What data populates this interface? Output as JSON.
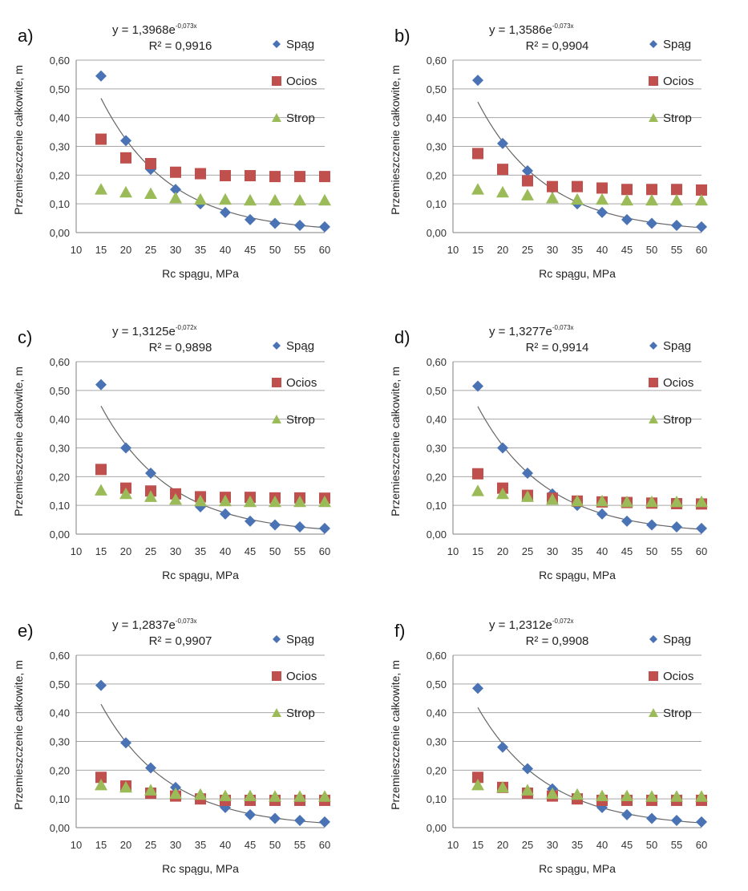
{
  "chart_data": [
    {
      "type": "scatter",
      "panel_label": "a)",
      "equation_base": "y = 1,3968e",
      "equation_exp": "-0,073x",
      "r2": "R² = 0,9916",
      "xlabel": "Rc spągu,  MPa",
      "ylabel": "Przemieszczenie całkowite,  m",
      "xlim": [
        10,
        60
      ],
      "ylim": [
        0,
        0.6
      ],
      "x_ticks": [
        "10",
        "15",
        "20",
        "25",
        "30",
        "35",
        "40",
        "45",
        "50",
        "55",
        "60"
      ],
      "y_ticks": [
        "0,00",
        "0,10",
        "0,20",
        "0,30",
        "0,40",
        "0,50",
        "0,60"
      ],
      "grid": "horizontal",
      "legend_position": "right",
      "trendline": {
        "a": 1.3968,
        "b": -0.073,
        "x_range": [
          15,
          60
        ],
        "color": "#666666"
      },
      "x": [
        15,
        20,
        25,
        30,
        35,
        40,
        45,
        50,
        55,
        60
      ],
      "series": [
        {
          "name": "Spąg",
          "marker": "diamond",
          "color": "#4a73b5",
          "values": [
            0.545,
            0.32,
            0.22,
            0.15,
            0.1,
            0.07,
            0.045,
            0.032,
            0.025,
            0.02
          ]
        },
        {
          "name": "Ocios",
          "marker": "square",
          "color": "#c0504d",
          "values": [
            0.325,
            0.26,
            0.24,
            0.21,
            0.205,
            0.198,
            0.198,
            0.195,
            0.195,
            0.195
          ]
        },
        {
          "name": "Strop",
          "marker": "triangle",
          "color": "#9bbb59",
          "values": [
            0.15,
            0.14,
            0.135,
            0.12,
            0.115,
            0.115,
            0.112,
            0.112,
            0.112,
            0.112
          ]
        }
      ]
    },
    {
      "type": "scatter",
      "panel_label": "b)",
      "equation_base": "y = 1,3586e",
      "equation_exp": "-0,073x",
      "r2": "R² = 0,9904",
      "xlabel": "Rc spągu,  MPa",
      "ylabel": "Przemieszczenie całkowite,  m",
      "xlim": [
        10,
        60
      ],
      "ylim": [
        0,
        0.6
      ],
      "x_ticks": [
        "10",
        "15",
        "20",
        "25",
        "30",
        "35",
        "40",
        "45",
        "50",
        "55",
        "60"
      ],
      "y_ticks": [
        "0,00",
        "0,10",
        "0,20",
        "0,30",
        "0,40",
        "0,50",
        "0,60"
      ],
      "grid": "horizontal",
      "legend_position": "right",
      "trendline": {
        "a": 1.3586,
        "b": -0.073,
        "x_range": [
          15,
          60
        ],
        "color": "#666666"
      },
      "x": [
        15,
        20,
        25,
        30,
        35,
        40,
        45,
        50,
        55,
        60
      ],
      "series": [
        {
          "name": "Spąg",
          "marker": "diamond",
          "color": "#4a73b5",
          "values": [
            0.53,
            0.31,
            0.215,
            0.155,
            0.1,
            0.07,
            0.045,
            0.032,
            0.025,
            0.02
          ]
        },
        {
          "name": "Ocios",
          "marker": "square",
          "color": "#c0504d",
          "values": [
            0.275,
            0.22,
            0.18,
            0.16,
            0.16,
            0.155,
            0.15,
            0.15,
            0.15,
            0.148
          ]
        },
        {
          "name": "Strop",
          "marker": "triangle",
          "color": "#9bbb59",
          "values": [
            0.15,
            0.14,
            0.13,
            0.12,
            0.115,
            0.115,
            0.112,
            0.112,
            0.112,
            0.112
          ]
        }
      ]
    },
    {
      "type": "scatter",
      "panel_label": "c)",
      "equation_base": "y = 1,3125e",
      "equation_exp": "-0,072x",
      "r2": "R² = 0,9898",
      "xlabel": "Rc spągu,  MPa",
      "ylabel": "Przemieszczenie całkowite,  m",
      "xlim": [
        10,
        60
      ],
      "ylim": [
        0,
        0.6
      ],
      "x_ticks": [
        "10",
        "15",
        "20",
        "25",
        "30",
        "35",
        "40",
        "45",
        "50",
        "55",
        "60"
      ],
      "y_ticks": [
        "0,00",
        "0,10",
        "0,20",
        "0,30",
        "0,40",
        "0,50",
        "0,60"
      ],
      "grid": "horizontal",
      "legend_position": "right",
      "trendline": {
        "a": 1.3125,
        "b": -0.072,
        "x_range": [
          15,
          60
        ],
        "color": "#666666"
      },
      "x": [
        15,
        20,
        25,
        30,
        35,
        40,
        45,
        50,
        55,
        60
      ],
      "series": [
        {
          "name": "Spąg",
          "marker": "diamond",
          "color": "#4a73b5",
          "values": [
            0.52,
            0.3,
            0.212,
            0.14,
            0.095,
            0.07,
            0.045,
            0.032,
            0.025,
            0.02
          ]
        },
        {
          "name": "Ocios",
          "marker": "square",
          "color": "#c0504d",
          "values": [
            0.225,
            0.16,
            0.15,
            0.14,
            0.13,
            0.128,
            0.128,
            0.126,
            0.126,
            0.125
          ]
        },
        {
          "name": "Strop",
          "marker": "triangle",
          "color": "#9bbb59",
          "values": [
            0.152,
            0.14,
            0.13,
            0.12,
            0.115,
            0.115,
            0.112,
            0.112,
            0.112,
            0.112
          ]
        }
      ]
    },
    {
      "type": "scatter",
      "panel_label": "d)",
      "equation_base": "y = 1,3277e",
      "equation_exp": "-0,073x",
      "r2": "R² = 0,9914",
      "xlabel": "Rc spągu,  MPa",
      "ylabel": "Przemieszczenie całkowite,  m",
      "xlim": [
        10,
        60
      ],
      "ylim": [
        0,
        0.6
      ],
      "x_ticks": [
        "10",
        "15",
        "20",
        "25",
        "30",
        "35",
        "40",
        "45",
        "50",
        "55",
        "60"
      ],
      "y_ticks": [
        "0,00",
        "0,10",
        "0,20",
        "0,30",
        "0,40",
        "0,50",
        "0,60"
      ],
      "grid": "horizontal",
      "legend_position": "right",
      "trendline": {
        "a": 1.3277,
        "b": -0.073,
        "x_range": [
          15,
          60
        ],
        "color": "#666666"
      },
      "x": [
        15,
        20,
        25,
        30,
        35,
        40,
        45,
        50,
        55,
        60
      ],
      "series": [
        {
          "name": "Spąg",
          "marker": "diamond",
          "color": "#4a73b5",
          "values": [
            0.515,
            0.3,
            0.212,
            0.14,
            0.1,
            0.07,
            0.045,
            0.032,
            0.025,
            0.02
          ]
        },
        {
          "name": "Ocios",
          "marker": "square",
          "color": "#c0504d",
          "values": [
            0.21,
            0.16,
            0.135,
            0.125,
            0.115,
            0.112,
            0.11,
            0.108,
            0.106,
            0.105
          ]
        },
        {
          "name": "Strop",
          "marker": "triangle",
          "color": "#9bbb59",
          "values": [
            0.15,
            0.14,
            0.13,
            0.12,
            0.115,
            0.115,
            0.112,
            0.112,
            0.112,
            0.112
          ]
        }
      ]
    },
    {
      "type": "scatter",
      "panel_label": "e)",
      "equation_base": "y = 1,2837e",
      "equation_exp": "-0,073x",
      "r2": "R² = 0,9907",
      "xlabel": "Rc spągu,  MPa",
      "ylabel": "Przemieszczenie całkowite,  m",
      "xlim": [
        10,
        60
      ],
      "ylim": [
        0,
        0.6
      ],
      "x_ticks": [
        "10",
        "15",
        "20",
        "25",
        "30",
        "35",
        "40",
        "45",
        "50",
        "55",
        "60"
      ],
      "y_ticks": [
        "0,00",
        "0,10",
        "0,20",
        "0,30",
        "0,40",
        "0,50",
        "0,60"
      ],
      "grid": "horizontal",
      "legend_position": "right",
      "trendline": {
        "a": 1.2837,
        "b": -0.073,
        "x_range": [
          15,
          60
        ],
        "color": "#666666"
      },
      "x": [
        15,
        20,
        25,
        30,
        35,
        40,
        45,
        50,
        55,
        60
      ],
      "series": [
        {
          "name": "Spąg",
          "marker": "diamond",
          "color": "#4a73b5",
          "values": [
            0.495,
            0.295,
            0.208,
            0.14,
            0.1,
            0.07,
            0.045,
            0.032,
            0.025,
            0.02
          ]
        },
        {
          "name": "Ocios",
          "marker": "square",
          "color": "#c0504d",
          "values": [
            0.175,
            0.145,
            0.12,
            0.11,
            0.1,
            0.095,
            0.095,
            0.095,
            0.095,
            0.095
          ]
        },
        {
          "name": "Strop",
          "marker": "triangle",
          "color": "#9bbb59",
          "values": [
            0.148,
            0.14,
            0.13,
            0.118,
            0.115,
            0.11,
            0.11,
            0.108,
            0.108,
            0.108
          ]
        }
      ]
    },
    {
      "type": "scatter",
      "panel_label": "f)",
      "equation_base": "y = 1,2312e",
      "equation_exp": "-0,072x",
      "r2": "R² = 0,9908",
      "xlabel": "Rc spągu,  MPa",
      "ylabel": "Przemieszczenie całkowite,  m",
      "xlim": [
        10,
        60
      ],
      "ylim": [
        0,
        0.6
      ],
      "x_ticks": [
        "10",
        "15",
        "20",
        "25",
        "30",
        "35",
        "40",
        "45",
        "50",
        "55",
        "60"
      ],
      "y_ticks": [
        "0,00",
        "0,10",
        "0,20",
        "0,30",
        "0,40",
        "0,50",
        "0,60"
      ],
      "grid": "horizontal",
      "legend_position": "right",
      "trendline": {
        "a": 1.2312,
        "b": -0.072,
        "x_range": [
          15,
          60
        ],
        "color": "#666666"
      },
      "x": [
        15,
        20,
        25,
        30,
        35,
        40,
        45,
        50,
        55,
        60
      ],
      "series": [
        {
          "name": "Spąg",
          "marker": "diamond",
          "color": "#4a73b5",
          "values": [
            0.485,
            0.28,
            0.205,
            0.135,
            0.1,
            0.07,
            0.045,
            0.032,
            0.025,
            0.02
          ]
        },
        {
          "name": "Ocios",
          "marker": "square",
          "color": "#c0504d",
          "values": [
            0.175,
            0.14,
            0.12,
            0.11,
            0.1,
            0.095,
            0.095,
            0.095,
            0.095,
            0.095
          ]
        },
        {
          "name": "Strop",
          "marker": "triangle",
          "color": "#9bbb59",
          "values": [
            0.148,
            0.14,
            0.13,
            0.118,
            0.115,
            0.11,
            0.11,
            0.108,
            0.108,
            0.108
          ]
        }
      ]
    }
  ]
}
